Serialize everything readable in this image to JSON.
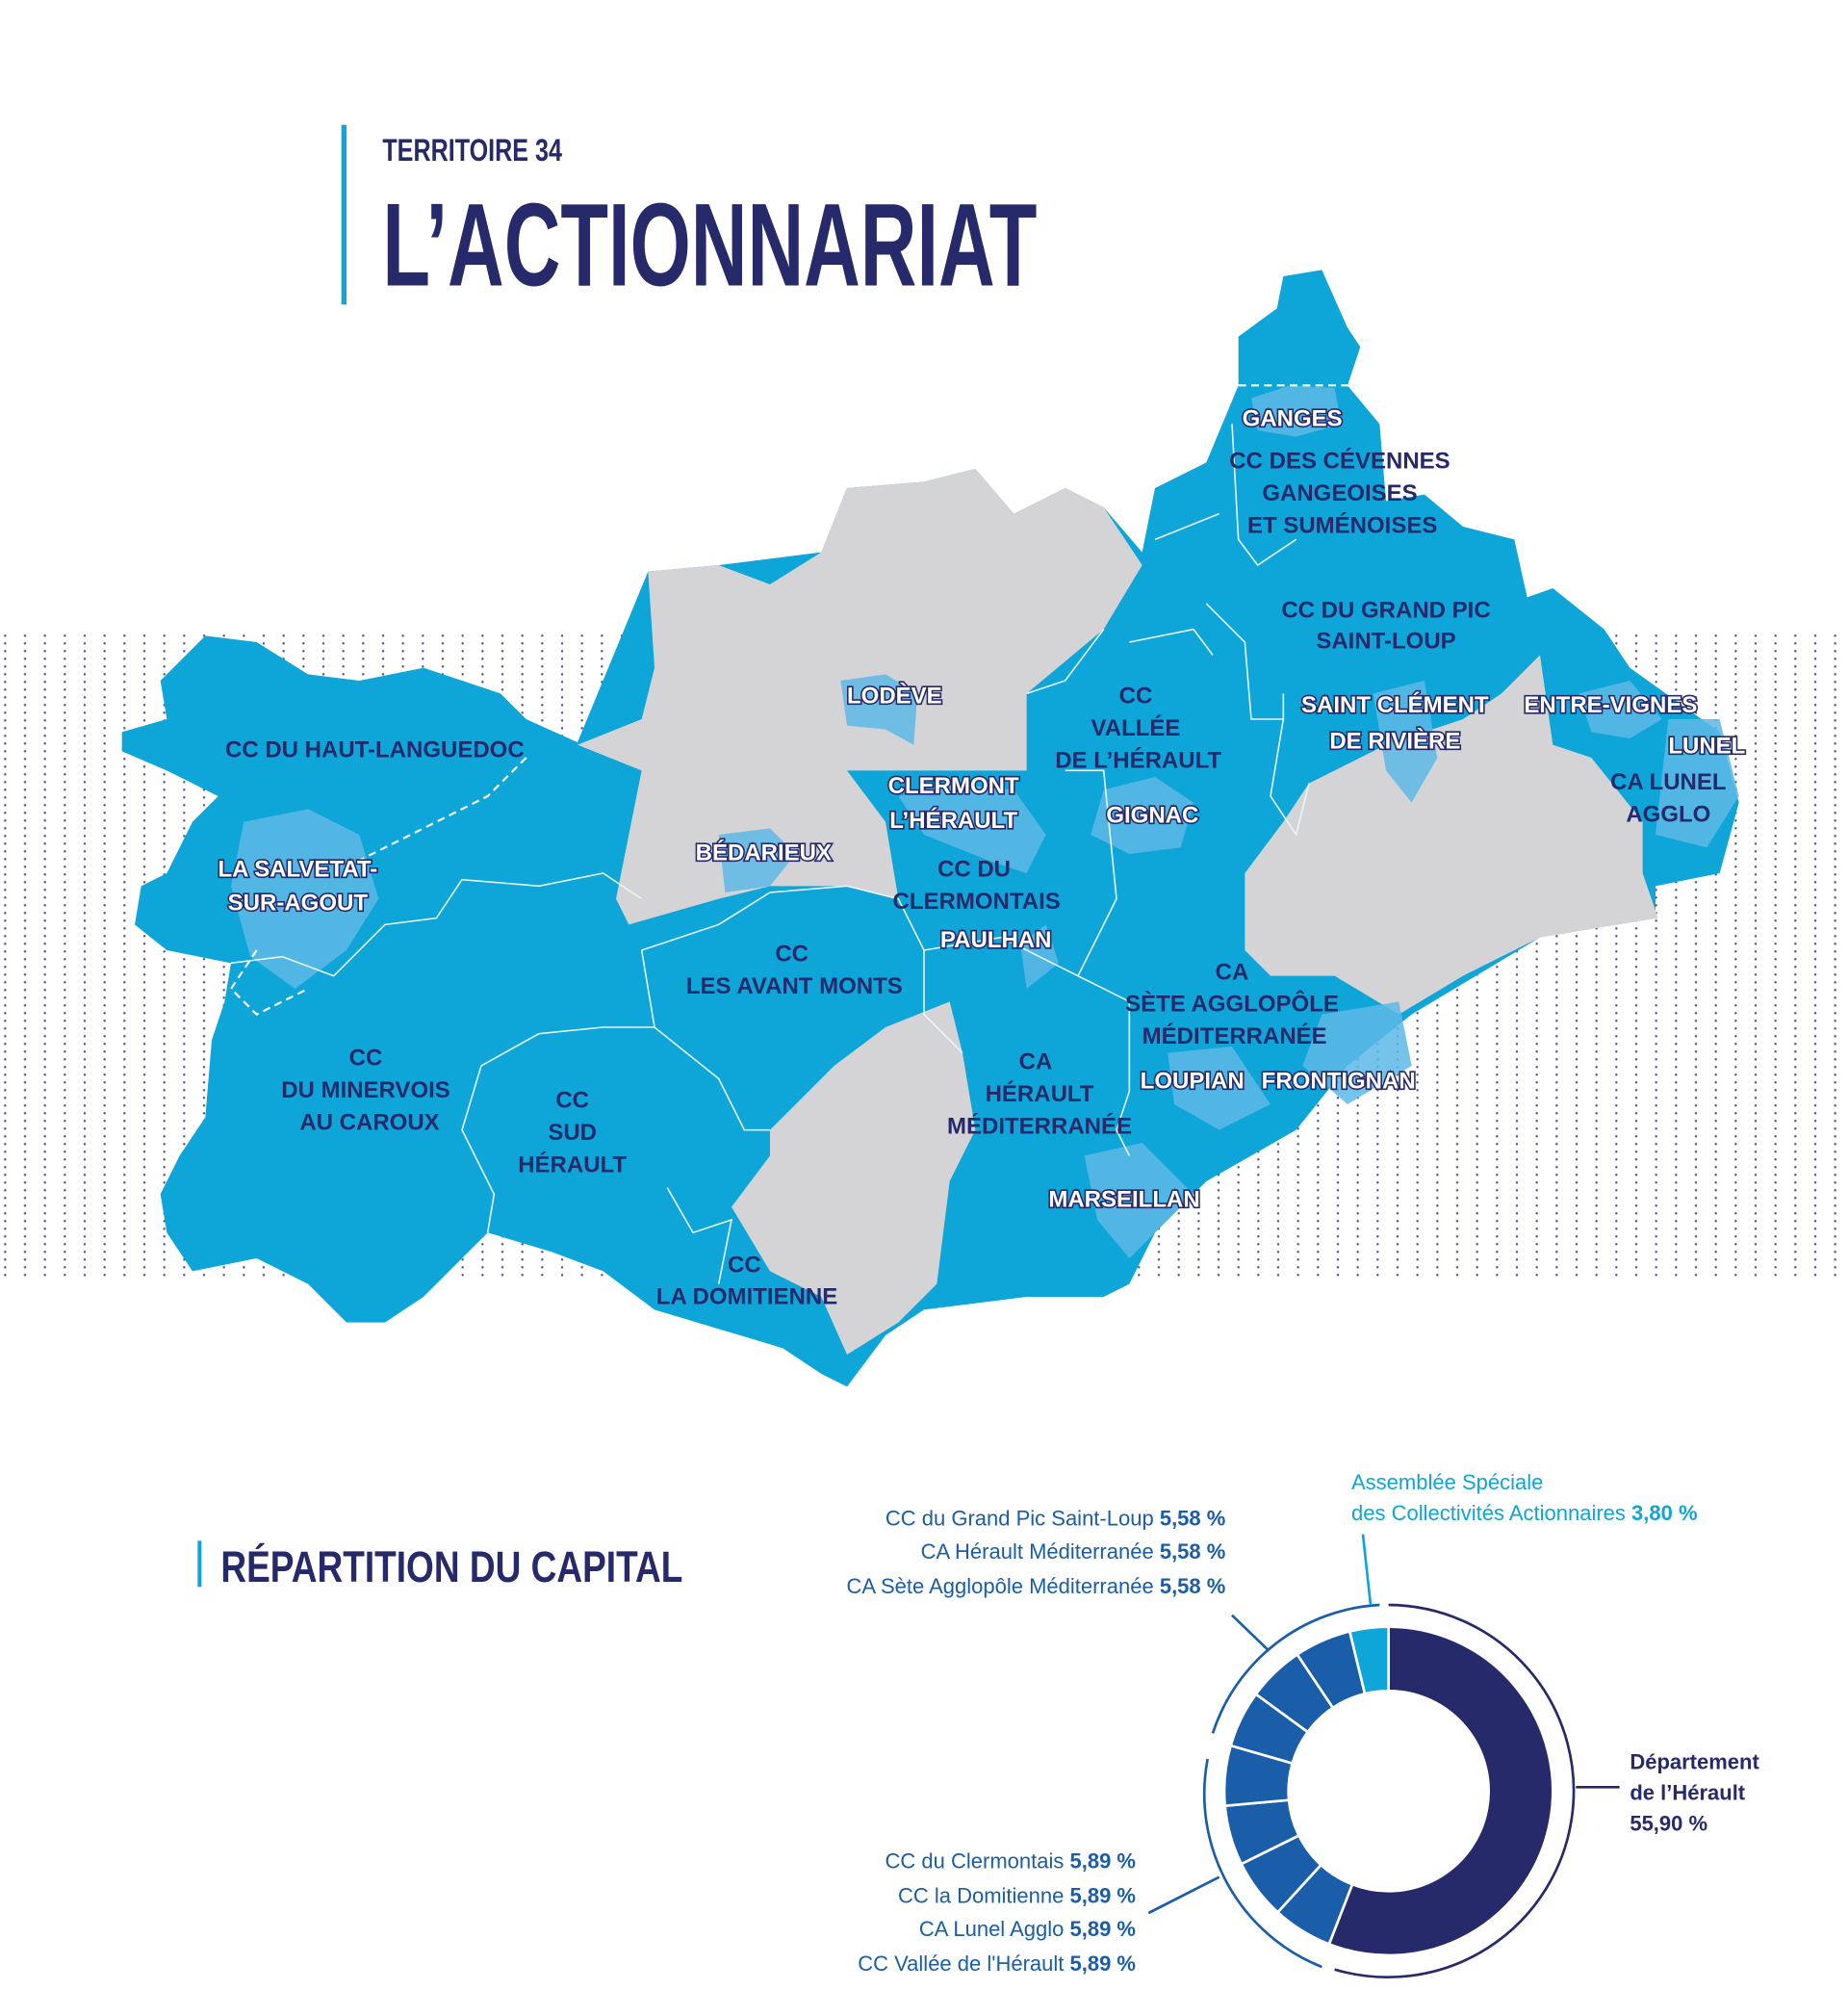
{
  "header": {
    "kicker": "TERRITOIRE 34",
    "title": "L’ACTIONNARIAT"
  },
  "colors": {
    "territory": "#0ea5d8",
    "commune_highlight": "#5db8e6",
    "non_member": "#d4d4d6",
    "navy": "#262a6b",
    "accent_bar": "#0ea5d8",
    "mid_blue": "#1a5da8"
  },
  "map": {
    "ganges": [
      "GANGES"
    ],
    "cc_cevennes": [
      "CC DES CÉVENNES",
      "GANGEOISES",
      "ET SUMÉNOISES"
    ],
    "cc_grand_pic": [
      "CC DU GRAND PIC",
      "SAINT-LOUP"
    ],
    "saint_clement": [
      "SAINT CLÉMENT",
      "DE RIVIÈRE"
    ],
    "entre_vignes": [
      "ENTRE-VIGNES"
    ],
    "lunel": [
      "LUNEL"
    ],
    "ca_lunel": [
      "CA LUNEL",
      "AGGLO"
    ],
    "cc_vallee": [
      "CC",
      "VALLÉE",
      "DE L’HÉRAULT"
    ],
    "gignac": [
      "GIGNAC"
    ],
    "lodeve": [
      "LODÈVE"
    ],
    "clermont": [
      "CLERMONT",
      "L’HÉRAULT"
    ],
    "cc_clermontais": [
      "CC DU",
      "CLERMONTAIS"
    ],
    "paulhan": [
      "PAULHAN"
    ],
    "bedarieux": [
      "BÉDARIEUX"
    ],
    "cc_haut_languedoc": [
      "CC DU HAUT-LANGUEDOC"
    ],
    "salvetat": [
      "LA SALVETAT-",
      "SUR-AGOUT"
    ],
    "cc_avant_monts": [
      "CC",
      "LES AVANT MONTS"
    ],
    "ca_sete": [
      "CA",
      "SÈTE AGGLOPÔLE",
      "MÉDITERRANÉE"
    ],
    "loupian": [
      "LOUPIAN"
    ],
    "frontignan": [
      "FRONTIGNAN"
    ],
    "ca_herault_med": [
      "CA",
      "HÉRAULT",
      "MÉDITERRANÉE"
    ],
    "marseillan": [
      "MARSEILLAN"
    ],
    "cc_minervois": [
      "CC",
      "DU MINERVOIS",
      "AU CAROUX"
    ],
    "cc_sud_herault": [
      "CC",
      "SUD",
      "HÉRAULT"
    ],
    "cc_domitienne": [
      "CC",
      "LA DOMITIENNE"
    ]
  },
  "capital": {
    "title": "RÉPARTITION DU CAPITAL"
  },
  "chart_data": {
    "type": "pie",
    "donut": true,
    "title": "RÉPARTITION DU CAPITAL",
    "categories": [
      "Département de l’Hérault",
      "CC Vallée de l'Hérault",
      "CA Lunel Agglo",
      "CC la Domitienne",
      "CC du Clermontais",
      "CA Sète Agglopôle Méditerranée",
      "CA Hérault Méditerranée",
      "CC du Grand Pic Saint-Loup",
      "Assemblée Spéciale des Collectivités Actionnaires"
    ],
    "values": [
      55.9,
      5.89,
      5.89,
      5.89,
      5.89,
      5.58,
      5.58,
      5.58,
      3.8
    ],
    "colors": [
      "#262a6b",
      "#1a5da8",
      "#1a5da8",
      "#1a5da8",
      "#1a5da8",
      "#1a5da8",
      "#1a5da8",
      "#1a5da8",
      "#0ea5d8"
    ],
    "labels": {
      "dept": {
        "lines": [
          "Département",
          "de l’Hérault",
          "55,90 %"
        ]
      },
      "asca": {
        "line1": "Assemblée Spéciale",
        "name": "des Collectivités Actionnaires",
        "value": "3,80 %"
      },
      "top": [
        {
          "name": "CC du Grand Pic Saint-Loup",
          "value": "5,58 %"
        },
        {
          "name": "CA Hérault Méditerranée",
          "value": "5,58 %"
        },
        {
          "name": "CA Sète Agglopôle Méditerranée",
          "value": "5,58 %"
        }
      ],
      "bottom": [
        {
          "name": "CC du Clermontais",
          "value": "5,89 %"
        },
        {
          "name": "CC la Domitienne",
          "value": "5,89 %"
        },
        {
          "name": "CA Lunel Agglo",
          "value": "5,89 %"
        },
        {
          "name": "CC Vallée de l'Hérault",
          "value": "5,89 %"
        }
      ]
    }
  }
}
